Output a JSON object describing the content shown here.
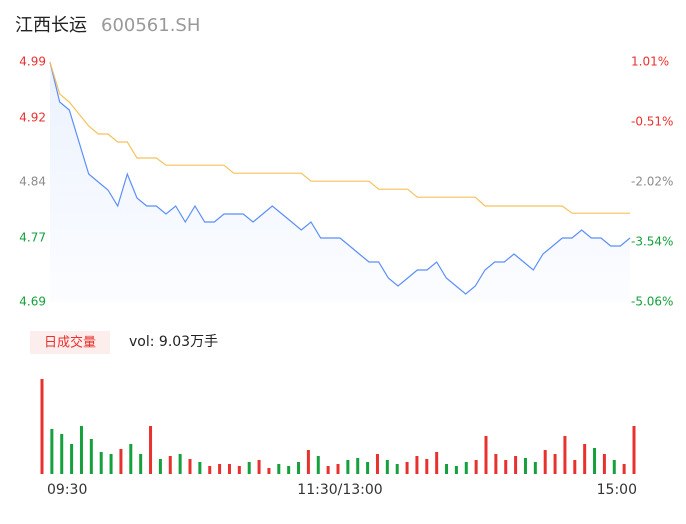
{
  "chart_data": [
    {
      "type": "line",
      "title": "江西长运",
      "subtitle": "600561.SH",
      "x": [
        0,
        4,
        8,
        12,
        16,
        20,
        24,
        28,
        32,
        36,
        40,
        44,
        48,
        52,
        56,
        60,
        64,
        68,
        72,
        76,
        80,
        84,
        88,
        92,
        96,
        100,
        104,
        108,
        112,
        116,
        120,
        124,
        128,
        132,
        136,
        140,
        144,
        148,
        152,
        156,
        160,
        164,
        168,
        172,
        176,
        180,
        184,
        188,
        192,
        196,
        200,
        204,
        208,
        212,
        216,
        220,
        224,
        228,
        232,
        236,
        240
      ],
      "xlim": [
        0,
        240
      ],
      "series": [
        {
          "name": "price",
          "color": "#5b8ff9",
          "values": [
            4.99,
            4.94,
            4.93,
            4.89,
            4.85,
            4.84,
            4.83,
            4.81,
            4.85,
            4.82,
            4.81,
            4.81,
            4.8,
            4.81,
            4.79,
            4.81,
            4.79,
            4.79,
            4.8,
            4.8,
            4.8,
            4.79,
            4.8,
            4.81,
            4.8,
            4.79,
            4.78,
            4.79,
            4.77,
            4.77,
            4.77,
            4.76,
            4.75,
            4.74,
            4.74,
            4.72,
            4.71,
            4.72,
            4.73,
            4.73,
            4.74,
            4.72,
            4.71,
            4.7,
            4.71,
            4.73,
            4.74,
            4.74,
            4.75,
            4.74,
            4.73,
            4.75,
            4.76,
            4.77,
            4.77,
            4.78,
            4.77,
            4.77,
            4.76,
            4.76,
            4.77
          ]
        },
        {
          "name": "average",
          "color": "#f6c15c",
          "values": [
            4.99,
            4.95,
            4.94,
            4.925,
            4.91,
            4.9,
            4.9,
            4.89,
            4.89,
            4.87,
            4.87,
            4.87,
            4.861,
            4.861,
            4.861,
            4.861,
            4.861,
            4.861,
            4.861,
            4.851,
            4.851,
            4.851,
            4.851,
            4.851,
            4.851,
            4.851,
            4.851,
            4.841,
            4.841,
            4.841,
            4.841,
            4.841,
            4.841,
            4.841,
            4.831,
            4.831,
            4.831,
            4.831,
            4.821,
            4.821,
            4.821,
            4.821,
            4.821,
            4.821,
            4.821,
            4.81,
            4.81,
            4.81,
            4.81,
            4.81,
            4.81,
            4.81,
            4.81,
            4.81,
            4.801,
            4.801,
            4.801,
            4.801,
            4.801,
            4.801,
            4.801
          ]
        }
      ],
      "ylim": [
        4.69,
        4.99
      ],
      "yticks": [
        4.99,
        4.92,
        4.84,
        4.77,
        4.69
      ],
      "y2lim": [
        -5.06,
        1.01
      ],
      "y2ticks": [
        {
          "value": 1.01,
          "label": "1.01%"
        },
        {
          "value": -0.51,
          "label": "-0.51%"
        },
        {
          "value": -2.02,
          "label": "-2.02%"
        },
        {
          "value": -3.54,
          "label": "-3.54%"
        },
        {
          "value": -5.06,
          "label": "-5.06%"
        }
      ],
      "up_color": "#e8312e",
      "flat_color": "#8c8c8c",
      "down_color": "#14a03c"
    },
    {
      "type": "bar",
      "title": "日成交量",
      "subtitle": "vol: 9.03万手",
      "x": [
        0,
        4,
        8,
        12,
        16,
        20,
        24,
        28,
        32,
        36,
        40,
        44,
        48,
        52,
        56,
        60,
        64,
        68,
        72,
        76,
        80,
        84,
        88,
        92,
        96,
        100,
        104,
        108,
        112,
        116,
        120,
        124,
        128,
        132,
        136,
        140,
        144,
        148,
        152,
        156,
        160,
        164,
        168,
        172,
        176,
        180,
        184,
        188,
        192,
        196,
        200,
        204,
        208,
        212,
        216,
        220,
        224,
        228,
        232,
        236,
        240
      ],
      "xlim": [
        0,
        240
      ],
      "values": [
        95,
        45,
        40,
        30,
        48,
        35,
        22,
        20,
        25,
        30,
        20,
        48,
        15,
        18,
        20,
        15,
        12,
        8,
        10,
        10,
        8,
        12,
        14,
        6,
        10,
        8,
        12,
        24,
        18,
        8,
        10,
        14,
        16,
        12,
        20,
        14,
        10,
        12,
        18,
        15,
        22,
        10,
        8,
        12,
        14,
        38,
        20,
        14,
        18,
        16,
        12,
        24,
        20,
        38,
        14,
        30,
        26,
        20,
        14,
        10,
        48
      ],
      "xticks": [
        {
          "value": 0,
          "label": "09:30"
        },
        {
          "value": 120,
          "label": "11:30/13:00"
        },
        {
          "value": 240,
          "label": "15:00"
        }
      ],
      "up_color": "#e8312e",
      "down_color": "#14a03c"
    }
  ]
}
